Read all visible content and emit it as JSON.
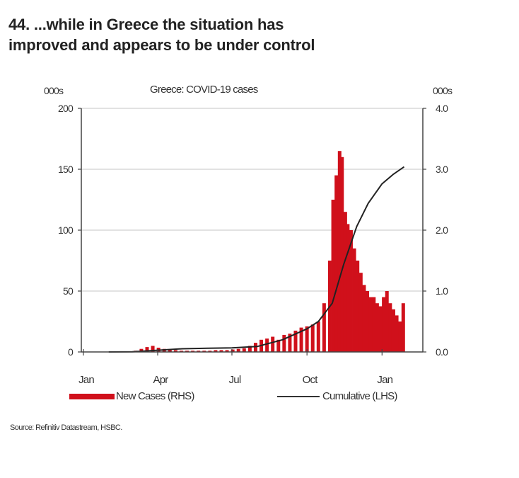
{
  "title_line1": "44. ...while in Greece the situation has",
  "title_line2": "improved and appears to be under control",
  "source": "Source: Refinitiv Datastream, HSBC.",
  "chart_data": {
    "type": "bar+line",
    "title": "Greece: COVID-19 cases",
    "left_unit": "000s",
    "right_unit": "000s",
    "left_axis": {
      "ylim": [
        0,
        200
      ],
      "ticks": [
        "0",
        "50",
        "100",
        "150",
        "200"
      ]
    },
    "right_axis": {
      "ylim": [
        0,
        4
      ],
      "ticks": [
        "0.0",
        "1.0",
        "2.0",
        "3.0",
        "4.0"
      ]
    },
    "x_ticks": [
      {
        "label": "Jan",
        "date": "2020-01-01"
      },
      {
        "label": "Apr",
        "date": "2020-04-01"
      },
      {
        "label": "Jul",
        "date": "2020-07-01"
      },
      {
        "label": "Oct",
        "date": "2020-10-01"
      },
      {
        "label": "Jan",
        "date": "2021-01-01"
      }
    ],
    "grid": true,
    "legend_position": "bottom",
    "colors": {
      "bars": "#d0101b",
      "line": "#222222",
      "grid": "#d9d9d9"
    },
    "series": [
      {
        "name": "New Cases (RHS)",
        "axis": "right",
        "type": "bar",
        "x": [
          "2020-03-05",
          "2020-03-12",
          "2020-03-19",
          "2020-03-26",
          "2020-04-02",
          "2020-04-09",
          "2020-04-16",
          "2020-04-23",
          "2020-04-30",
          "2020-05-07",
          "2020-05-14",
          "2020-05-21",
          "2020-05-28",
          "2020-06-04",
          "2020-06-11",
          "2020-06-18",
          "2020-06-25",
          "2020-07-02",
          "2020-07-09",
          "2020-07-16",
          "2020-07-23",
          "2020-07-30",
          "2020-08-06",
          "2020-08-13",
          "2020-08-20",
          "2020-08-27",
          "2020-09-03",
          "2020-09-10",
          "2020-09-17",
          "2020-09-24",
          "2020-10-01",
          "2020-10-08",
          "2020-10-15",
          "2020-10-22",
          "2020-10-29",
          "2020-11-02",
          "2020-11-06",
          "2020-11-10",
          "2020-11-13",
          "2020-11-17",
          "2020-11-20",
          "2020-11-24",
          "2020-11-28",
          "2020-12-02",
          "2020-12-06",
          "2020-12-10",
          "2020-12-14",
          "2020-12-18",
          "2020-12-22",
          "2020-12-26",
          "2020-12-30",
          "2021-01-03",
          "2021-01-07",
          "2021-01-11",
          "2021-01-15",
          "2021-01-19",
          "2021-01-23",
          "2021-01-27"
        ],
        "values": [
          0.02,
          0.05,
          0.08,
          0.1,
          0.07,
          0.05,
          0.03,
          0.03,
          0.02,
          0.02,
          0.02,
          0.02,
          0.02,
          0.02,
          0.03,
          0.03,
          0.03,
          0.04,
          0.05,
          0.06,
          0.1,
          0.15,
          0.2,
          0.22,
          0.25,
          0.2,
          0.28,
          0.3,
          0.35,
          0.4,
          0.42,
          0.45,
          0.5,
          0.8,
          1.5,
          2.5,
          2.9,
          3.3,
          3.2,
          2.3,
          2.1,
          2.0,
          1.7,
          1.5,
          1.3,
          1.1,
          1.0,
          0.9,
          0.9,
          0.8,
          0.75,
          0.9,
          1.0,
          0.8,
          0.7,
          0.6,
          0.5,
          0.8
        ]
      },
      {
        "name": "Cumulative (LHS)",
        "axis": "left",
        "type": "line",
        "x": [
          "2020-02-01",
          "2020-03-01",
          "2020-04-01",
          "2020-05-01",
          "2020-06-01",
          "2020-07-01",
          "2020-08-01",
          "2020-09-01",
          "2020-10-01",
          "2020-10-15",
          "2020-11-01",
          "2020-11-15",
          "2020-12-01",
          "2020-12-15",
          "2021-01-01",
          "2021-01-15",
          "2021-01-28"
        ],
        "values": [
          0,
          0.1,
          1.4,
          2.6,
          3.0,
          3.4,
          4.5,
          10,
          19,
          25,
          40,
          72,
          103,
          122,
          138,
          146,
          152
        ]
      }
    ]
  }
}
